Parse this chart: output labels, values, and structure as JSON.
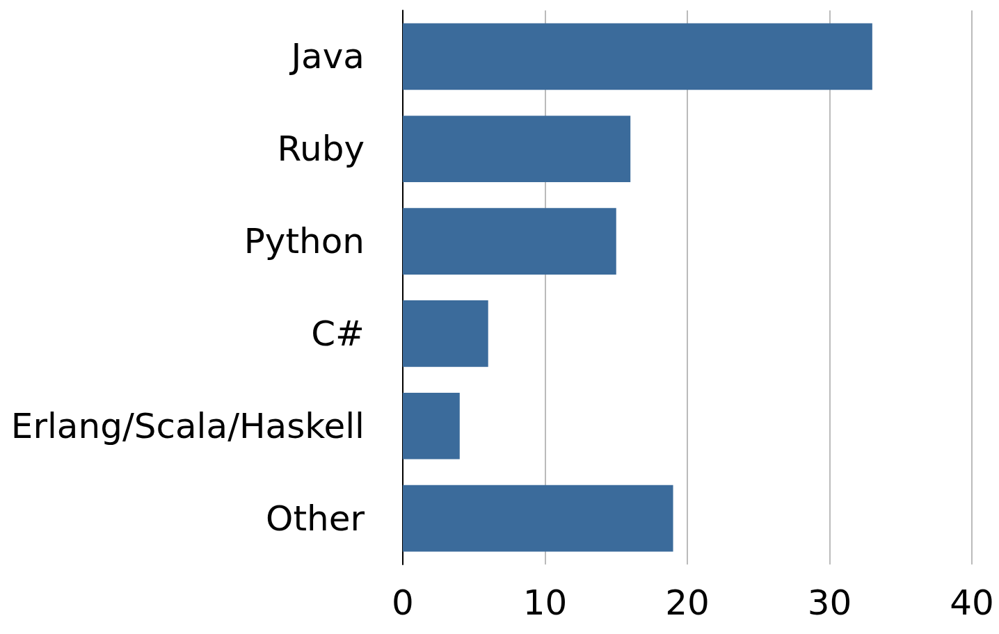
{
  "chart_data": {
    "type": "bar",
    "orientation": "horizontal",
    "categories": [
      "Java",
      "Ruby",
      "Python",
      "C#",
      "Erlang/Scala/Haskell",
      "Other"
    ],
    "values": [
      33,
      16,
      15,
      6,
      4,
      19
    ],
    "color": "#3b6b9b",
    "xlim": [
      0,
      40
    ],
    "xticks": [
      0,
      10,
      20,
      30,
      40
    ],
    "grid": "x"
  }
}
